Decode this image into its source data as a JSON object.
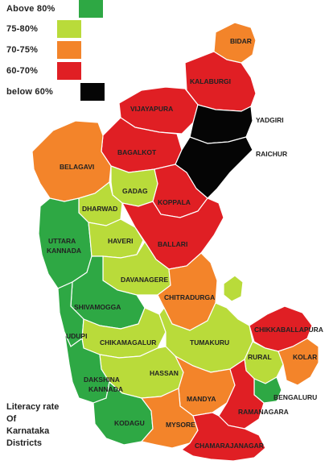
{
  "legend": [
    {
      "label": "Above 80%",
      "color": "#2ea844"
    },
    {
      "label": "75-80%",
      "color": "#b9db3a"
    },
    {
      "label": "70-75%",
      "color": "#f3842a"
    },
    {
      "label": "60-70%",
      "color": "#e01f24"
    },
    {
      "label": "below 60%",
      "color": "#050505"
    }
  ],
  "caption": {
    "line1": "Literacy rate",
    "line2": "Of",
    "line3": "Karnataka",
    "line4": "Districts"
  },
  "districts": {
    "bidar": "BIDAR",
    "kalaburgi": "KALABURGI",
    "vijayapura": "VIJAYAPURA",
    "yadgiri": "YADGIRI",
    "bagalkot": "BAGALKOT",
    "raichur": "RAICHUR",
    "belagavi": "BELAGAVI",
    "gadag": "GADAG",
    "koppala": "KOPPALA",
    "dharwad": "DHARWAD",
    "uttara_kannada_1": "UTTARA",
    "uttara_kannada_2": "KANNADA",
    "haveri": "HAVERI",
    "ballari": "BALLARI",
    "davanagere": "DAVANAGERE",
    "shivamogga": "SHIVAMOGGA",
    "chitradurga": "CHITRADURGA",
    "udupi": "UDUPI",
    "chikamagalur": "CHIKAMAGALUR",
    "tumakuru": "TUMAKURU",
    "chikkaballapura": "CHIKKABALLAPURA",
    "rural": "RURAL",
    "kolar": "KOLAR",
    "hassan": "HASSAN",
    "dakshina_kannada_1": "DAKSHINA",
    "dakshina_kannada_2": "KANNADA",
    "bengaluru": "BENGALURU",
    "mandya": "MANDYA",
    "ramanagara": "RAMANAGARA",
    "kodagu": "KODAGU",
    "mysore": "MYSORE",
    "chamarajanagar": "CHAMARAJANAGAR"
  }
}
